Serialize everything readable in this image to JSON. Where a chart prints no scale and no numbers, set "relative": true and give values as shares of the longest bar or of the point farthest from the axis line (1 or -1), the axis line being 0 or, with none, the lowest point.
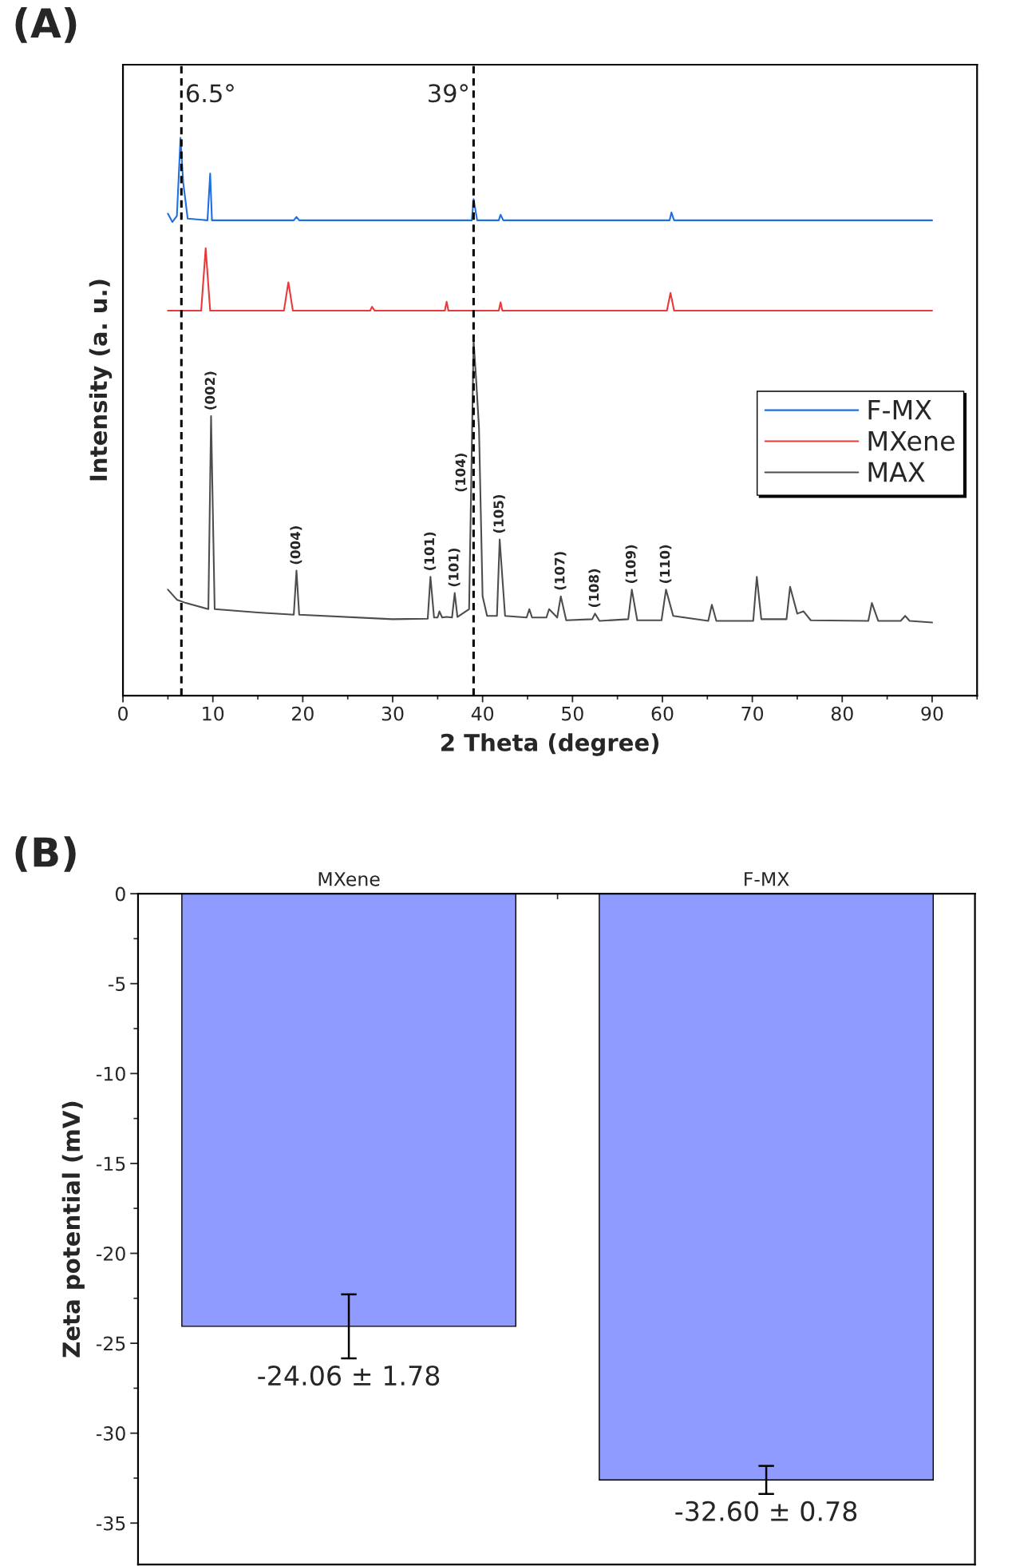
{
  "chart_data": [
    {
      "type": "line",
      "title": "(A)",
      "xlabel": "2 Theta (degree)",
      "ylabel": "Intensity (a. u.)",
      "relative": true,
      "xlim": [
        0,
        95
      ],
      "xticks": [
        0,
        10,
        20,
        30,
        40,
        50,
        60,
        70,
        80,
        90
      ],
      "legend": "right",
      "grid": false,
      "series": [
        {
          "name": "F-MX",
          "color": "#1f6fe0",
          "x": [
            5,
            5.5,
            6.0,
            6.4,
            6.7,
            7.2,
            9.4,
            9.7,
            9.9,
            19,
            19.3,
            19.6,
            38.8,
            39.0,
            39.4,
            41.8,
            42.0,
            42.3,
            60.8,
            61.0,
            61.3,
            90
          ],
          "values": [
            0.864,
            0.849,
            0.86,
            1.0,
            0.92,
            0.855,
            0.852,
            0.936,
            0.852,
            0.852,
            0.858,
            0.852,
            0.852,
            0.89,
            0.852,
            0.852,
            0.862,
            0.852,
            0.852,
            0.866,
            0.852,
            0.852
          ]
        },
        {
          "name": "MXene",
          "color": "#e83a3a",
          "x": [
            5,
            8.7,
            9.2,
            9.7,
            17.9,
            18.4,
            18.9,
            27.5,
            27.7,
            28,
            35.8,
            36.0,
            36.2,
            41.8,
            42.0,
            42.2,
            60.5,
            60.9,
            61.3,
            90
          ],
          "values": [
            0.69,
            0.69,
            0.802,
            0.69,
            0.69,
            0.741,
            0.69,
            0.69,
            0.697,
            0.69,
            0.69,
            0.706,
            0.69,
            0.69,
            0.705,
            0.69,
            0.69,
            0.722,
            0.69,
            0.69
          ]
        },
        {
          "name": "MAX",
          "color": "#4d4d4d",
          "x": [
            5,
            6,
            7,
            9.5,
            9.8,
            10.2,
            15,
            19.0,
            19.3,
            19.6,
            30,
            33.9,
            34.2,
            34.6,
            35,
            35.2,
            35.5,
            36.0,
            36.6,
            36.9,
            37.2,
            38.5,
            39.0,
            39.3,
            39.6,
            40,
            40.5,
            41.6,
            41.9,
            42.5,
            44.9,
            45.2,
            45.5,
            47.1,
            47.4,
            48.3,
            48.7,
            49.3,
            52.2,
            52.5,
            53,
            56.2,
            56.6,
            57.2,
            59.9,
            60.4,
            61.2,
            65.1,
            65.5,
            66,
            70.1,
            70.5,
            71,
            73.8,
            74.2,
            75,
            75.7,
            76.5,
            82.9,
            83.3,
            84,
            86.5,
            87,
            87.5,
            90
          ],
          "values": [
            0.19,
            0.172,
            0.166,
            0.155,
            0.501,
            0.155,
            0.149,
            0.145,
            0.224,
            0.145,
            0.137,
            0.138,
            0.213,
            0.14,
            0.14,
            0.151,
            0.14,
            0.141,
            0.14,
            0.184,
            0.141,
            0.155,
            0.637,
            0.562,
            0.48,
            0.178,
            0.143,
            0.143,
            0.28,
            0.143,
            0.14,
            0.155,
            0.14,
            0.14,
            0.155,
            0.14,
            0.178,
            0.135,
            0.137,
            0.147,
            0.134,
            0.137,
            0.19,
            0.135,
            0.135,
            0.19,
            0.143,
            0.134,
            0.163,
            0.134,
            0.134,
            0.213,
            0.137,
            0.137,
            0.195,
            0.147,
            0.151,
            0.135,
            0.134,
            0.166,
            0.134,
            0.134,
            0.143,
            0.134,
            0.131
          ]
        }
      ],
      "ref_lines": [
        {
          "axis": "x",
          "value": 6.5,
          "label": "6.5°",
          "color": "#000000",
          "line_style": "dashed"
        },
        {
          "axis": "x",
          "value": 39,
          "label": "39°",
          "color": "#000000",
          "line_style": "dashed"
        }
      ],
      "annotations": [
        {
          "text": "(002)",
          "x": 9.8,
          "y": 0.501
        },
        {
          "text": "(004)",
          "x": 19.3,
          "y": 0.224
        },
        {
          "text": "(101)",
          "x": 34.2,
          "y": 0.213
        },
        {
          "text": "(101)",
          "x": 36.9,
          "y": 0.184
        },
        {
          "text": "(104)",
          "x": 38.75,
          "y": 0.4
        },
        {
          "text": "(105)",
          "x": 41.9,
          "y": 0.28
        },
        {
          "text": "(107)",
          "x": 48.7,
          "y": 0.178
        },
        {
          "text": "(108)",
          "x": 52.5,
          "y": 0.147
        },
        {
          "text": "(109)",
          "x": 56.6,
          "y": 0.19
        },
        {
          "text": "(110)",
          "x": 60.4,
          "y": 0.19
        }
      ]
    },
    {
      "type": "bar",
      "title": "(B)",
      "ylabel": "Zeta potential (mV)",
      "categories": [
        "MXene",
        "F-MX"
      ],
      "values": [
        -24.06,
        -32.6
      ],
      "errors": [
        1.78,
        0.78
      ],
      "color": "#8f9bff",
      "value_labels": [
        "-24.06 ± 1.78",
        "-32.60 ± 0.78"
      ],
      "ylim": [
        -37.3,
        0
      ],
      "yticks": [
        0,
        -5,
        -10,
        -15,
        -20,
        -25,
        -30,
        -35
      ],
      "grid": false
    }
  ]
}
